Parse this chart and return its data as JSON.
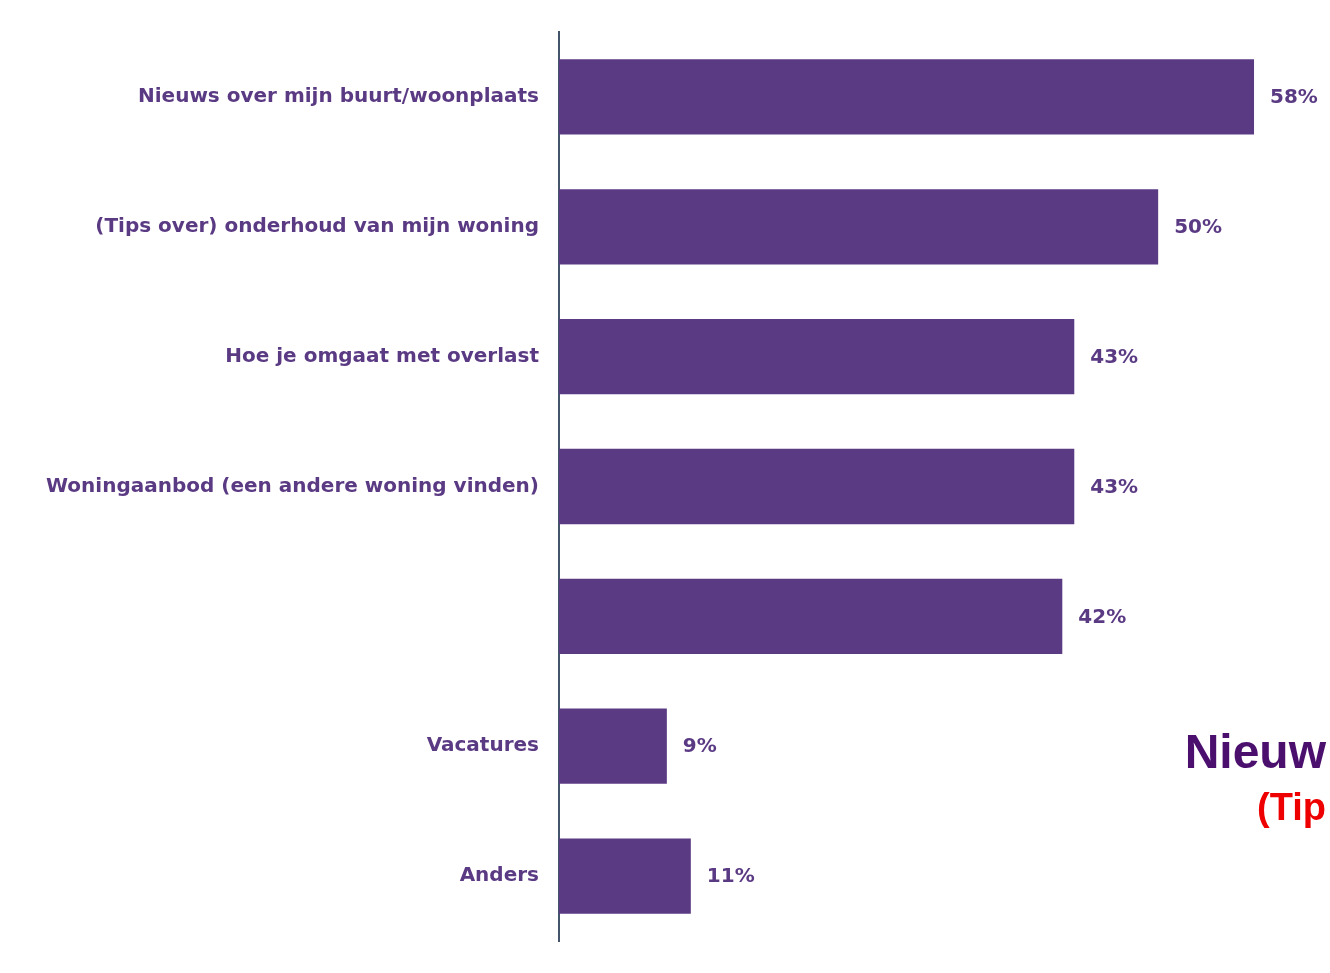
{
  "chart_data": {
    "type": "bar",
    "orientation": "horizontal",
    "categories": [
      "Nieuws over mijn buurt/woonplaats",
      "(Tips over) onderhoud van mijn woning",
      "Hoe je omgaat met overlast",
      "Woningaanbod (een andere woning vinden)",
      null,
      "Vacatures",
      "Anders"
    ],
    "values": [
      58,
      50,
      43,
      43,
      42,
      9,
      11
    ],
    "value_labels": [
      "58%",
      "50%",
      "43%",
      "43%",
      "42%",
      "9%",
      "11%"
    ],
    "color": "#5b3a84",
    "legend": false,
    "tick_labels": "y",
    "annotations": [
      "Nieuw",
      "(Tip"
    ]
  }
}
